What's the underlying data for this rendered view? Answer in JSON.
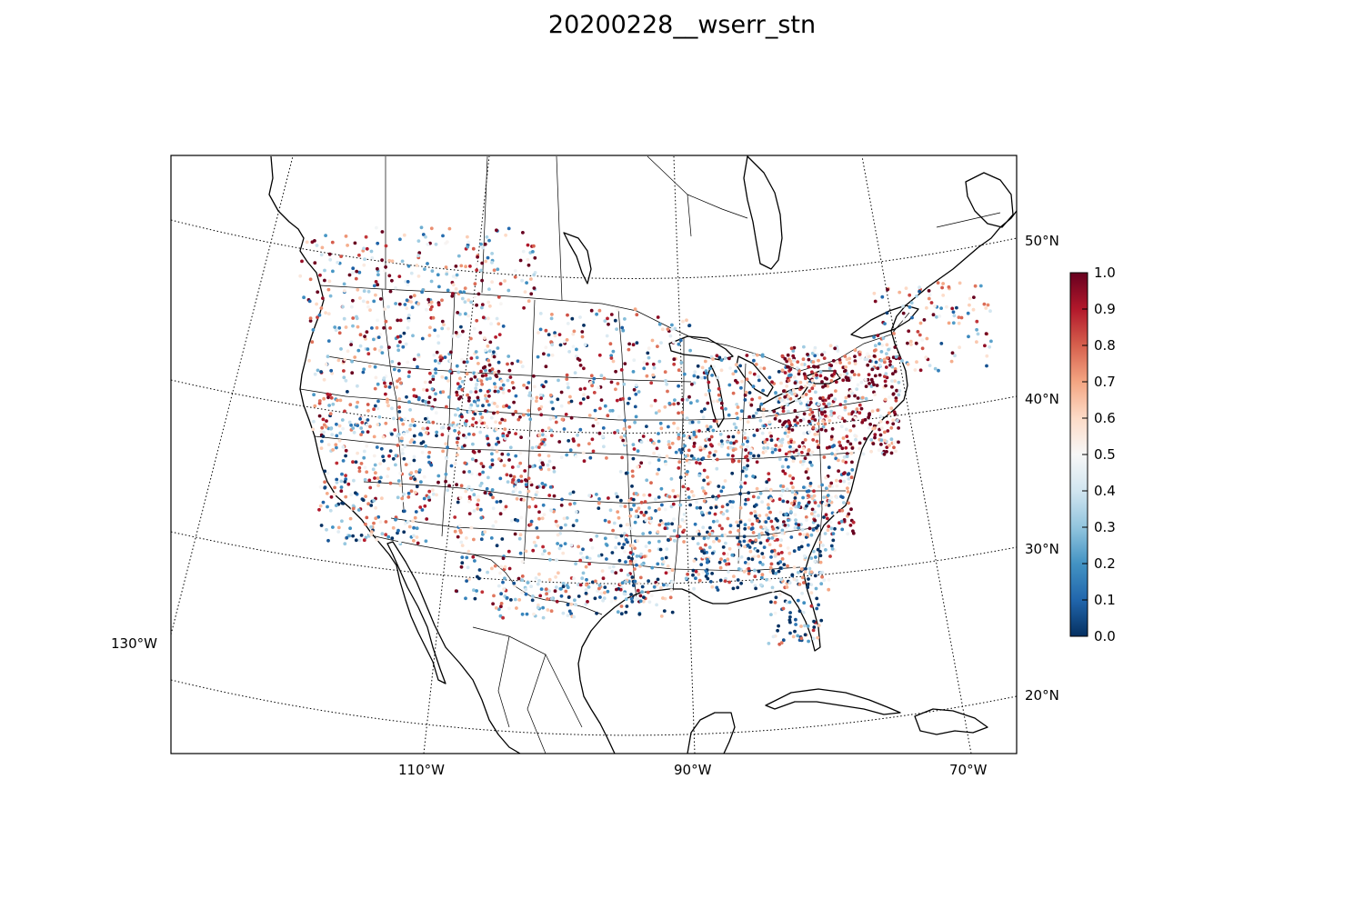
{
  "title": "20200228__wserr_stn",
  "map": {
    "projection": "lambert-conformal-conic",
    "region": "continental United States",
    "parallels": [
      {
        "lat": 20,
        "label": "20°N"
      },
      {
        "lat": 30,
        "label": "30°N"
      },
      {
        "lat": 40,
        "label": "40°N"
      },
      {
        "lat": 50,
        "label": "50°N"
      }
    ],
    "meridians": [
      {
        "lon": -130,
        "label": "130°W"
      },
      {
        "lon": -110,
        "label": "110°W"
      },
      {
        "lon": -90,
        "label": "90°W"
      },
      {
        "lon": -70,
        "label": "70°W"
      }
    ],
    "colorbar": {
      "colormap": "RdBu_r",
      "min": 0.0,
      "max": 1.0,
      "tick_labels": [
        "0.0",
        "0.1",
        "0.2",
        "0.3",
        "0.4",
        "0.5",
        "0.6",
        "0.7",
        "0.8",
        "0.9",
        "1.0"
      ]
    }
  }
}
